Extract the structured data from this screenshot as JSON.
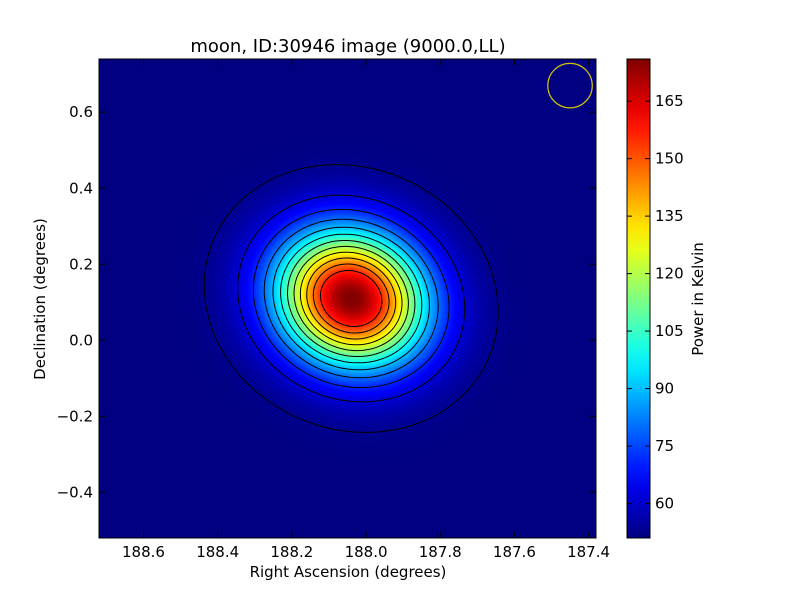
{
  "chart_data": {
    "type": "heatmap",
    "title": "moon, ID:30946 image (9000.0,LL)",
    "xlabel": "Right Ascension (degrees)",
    "ylabel": "Declination (degrees)",
    "colorbar_label": "Power in Kelvin",
    "colormap": "jet",
    "xlim": [
      188.72,
      187.38
    ],
    "ylim": [
      -0.52,
      0.74
    ],
    "clim": [
      51,
      176
    ],
    "x_ticks": [
      188.6,
      188.4,
      188.2,
      188.0,
      187.8,
      187.6,
      187.4
    ],
    "x_tick_labels": [
      "188.6",
      "188.4",
      "188.2",
      "188.0",
      "187.8",
      "187.6",
      "187.4"
    ],
    "y_ticks": [
      -0.4,
      -0.2,
      0.0,
      0.2,
      0.4,
      0.6
    ],
    "y_tick_labels": [
      "−0.4",
      "−0.2",
      "0.0",
      "0.2",
      "0.4",
      "0.6"
    ],
    "colorbar_ticks": [
      60,
      75,
      90,
      105,
      120,
      135,
      150,
      165
    ],
    "colorbar_tick_labels": [
      "60",
      "75",
      "90",
      "105",
      "120",
      "135",
      "150",
      "165"
    ],
    "source": {
      "center_ra": 188.04,
      "center_dec": 0.11,
      "peak_kelvin": 176,
      "background_kelvin": 51,
      "sigma_major_deg": 0.14,
      "sigma_minor_deg": 0.12,
      "position_angle_deg": 20
    },
    "contours": {
      "count": 12,
      "color": "#000000",
      "outer_level_kelvin": 53
    },
    "beam_marker": {
      "center_ra": 187.45,
      "center_dec": 0.67,
      "radius_deg": 0.06,
      "color": "#d4c200"
    }
  }
}
